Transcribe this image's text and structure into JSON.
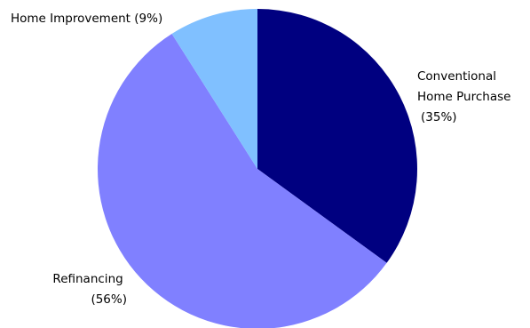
{
  "chart_data": {
    "type": "pie",
    "title": "",
    "start_angle_deg": 0,
    "direction": "clockwise",
    "legend": "none",
    "slices": [
      {
        "name": "Conventional Home Purchase",
        "label_lines": [
          "Conventional",
          "Home Purchase",
          "(35%)"
        ],
        "value": 35,
        "color": "#000080"
      },
      {
        "name": "Refinancing",
        "label_lines": [
          "Refinancing",
          "(56%)"
        ],
        "value": 56,
        "color": "#8080FF"
      },
      {
        "name": "Home Improvement",
        "label_lines": [
          "Home Improvement (9%)"
        ],
        "value": 9,
        "color": "#80C0FF"
      }
    ]
  }
}
